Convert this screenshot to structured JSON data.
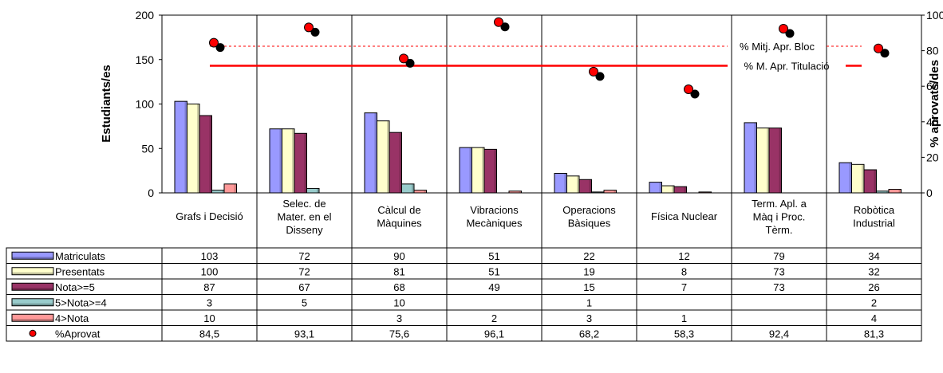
{
  "chart_data": {
    "type": "bar",
    "categories": [
      [
        "Grafs i Decisió"
      ],
      [
        "Selec. de",
        "Mater. en el",
        "Disseny"
      ],
      [
        "Càlcul de",
        "Màquines"
      ],
      [
        "Vibracions",
        "Mecàniques"
      ],
      [
        "Operacions",
        "Bàsiques"
      ],
      [
        "Física Nuclear"
      ],
      [
        "Term. Apl. a",
        "Màq i Proc.",
        "Tèrm."
      ],
      [
        "Robòtica",
        "Industrial"
      ]
    ],
    "series": [
      {
        "name": "Matriculats",
        "color": "#9999ff",
        "values": [
          103,
          72,
          90,
          51,
          22,
          12,
          79,
          34
        ],
        "labels": [
          "103",
          "72",
          "90",
          "51",
          "22",
          "12",
          "79",
          "34"
        ]
      },
      {
        "name": "Presentats",
        "color": "#ffffcc",
        "values": [
          100,
          72,
          81,
          51,
          19,
          8,
          73,
          32
        ],
        "labels": [
          "100",
          "72",
          "81",
          "51",
          "19",
          "8",
          "73",
          "32"
        ]
      },
      {
        "name": "Nota>=5",
        "color": "#993366",
        "values": [
          87,
          67,
          68,
          49,
          15,
          7,
          73,
          26
        ],
        "labels": [
          "87",
          "67",
          "68",
          "49",
          "15",
          "7",
          "73",
          "26"
        ]
      },
      {
        "name": "5>Nota>=4",
        "color": "#99cccc",
        "values": [
          3,
          5,
          10,
          0,
          1,
          0,
          0,
          2
        ],
        "labels": [
          "3",
          "5",
          "10",
          "",
          "1",
          "",
          "",
          "2"
        ]
      },
      {
        "name": "4>Nota",
        "color": "#ff9999",
        "values": [
          10,
          0,
          3,
          2,
          3,
          1,
          0,
          4
        ],
        "labels": [
          "10",
          "",
          "3",
          "2",
          "3",
          "1",
          "",
          "4"
        ]
      }
    ],
    "percent_series": {
      "name": "%Aprovat",
      "color": "#ff0000",
      "values": [
        84.5,
        93.1,
        75.6,
        96.1,
        68.2,
        58.3,
        92.4,
        81.3
      ],
      "labels": [
        "84,5",
        "93,1",
        "75,6",
        "96,1",
        "68,2",
        "58,3",
        "92,4",
        "81,3"
      ]
    },
    "ylabel": "Estudiants/es",
    "y2label": "% aprovats/des",
    "ylim": [
      0,
      200
    ],
    "y2lim": [
      0,
      100
    ],
    "yticks": [
      "0",
      "50",
      "100",
      "150",
      "200"
    ],
    "y2ticks": [
      "0",
      "20",
      "40",
      "60",
      "80",
      "100"
    ],
    "reference_lines": [
      {
        "label": "% Mitj. Apr. Bloc",
        "value": 82.5,
        "style": "dashed",
        "color": "#ff0000"
      },
      {
        "label": "% M. Apr. Titulació",
        "value": 71.5,
        "style": "solid",
        "color": "#ff0000"
      }
    ],
    "legend_position": "table-left",
    "grid": false
  }
}
